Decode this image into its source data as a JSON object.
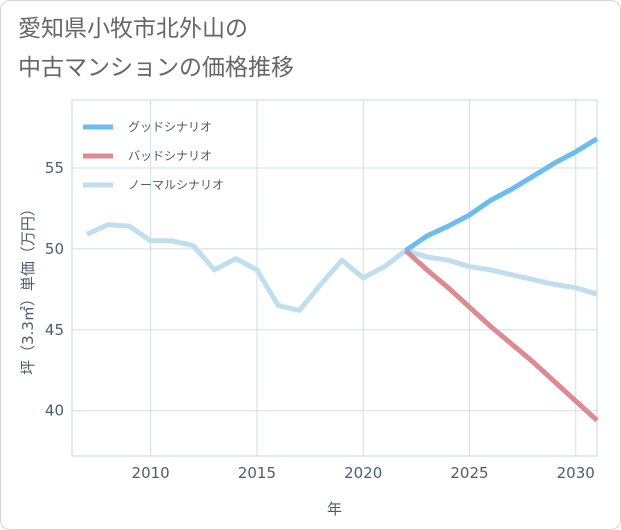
{
  "title_lines": [
    "愛知県小牧市北外山の",
    "中古マンションの価格推移"
  ],
  "chart_data": {
    "type": "line",
    "title": "愛知県小牧市北外山の中古マンションの価格推移",
    "xlabel": "年",
    "ylabel": "坪（3.3㎡）単価（万円）",
    "xlim": [
      2006.3,
      2031
    ],
    "ylim": [
      37.2,
      59.2
    ],
    "xticks": [
      2010,
      2015,
      2020,
      2025,
      2030
    ],
    "yticks": [
      40,
      45,
      50,
      55
    ],
    "grid": true,
    "legend_position": "top-left",
    "series": [
      {
        "name": "グッドシナリオ",
        "color": "#6bbcef",
        "x": [
          2022,
          2023,
          2024,
          2025,
          2026,
          2027,
          2028,
          2029,
          2030,
          2031
        ],
        "y": [
          49.9,
          50.8,
          51.4,
          52.1,
          53.0,
          53.7,
          54.5,
          55.3,
          56.0,
          56.8
        ]
      },
      {
        "name": "バッドシナリオ",
        "color": "#dc8b91",
        "x": [
          2022,
          2023,
          2024,
          2025,
          2026,
          2027,
          2028,
          2029,
          2030,
          2031
        ],
        "y": [
          49.9,
          48.7,
          47.6,
          46.4,
          45.2,
          44.1,
          43.0,
          41.8,
          40.6,
          39.4
        ]
      },
      {
        "name": "ノーマルシナリオ",
        "color": "#bfdfee",
        "x": [
          2007,
          2008,
          2009,
          2010,
          2011,
          2012,
          2013,
          2014,
          2015,
          2016,
          2017,
          2018,
          2019,
          2020,
          2021,
          2022,
          2023,
          2024,
          2025,
          2026,
          2027,
          2028,
          2029,
          2030,
          2031
        ],
        "y": [
          50.9,
          51.5,
          51.4,
          50.5,
          50.5,
          50.2,
          48.7,
          49.4,
          48.7,
          46.5,
          46.2,
          47.8,
          49.3,
          48.2,
          48.9,
          49.9,
          49.5,
          49.3,
          48.9,
          48.7,
          48.4,
          48.1,
          47.8,
          47.6,
          47.2
        ]
      }
    ]
  }
}
